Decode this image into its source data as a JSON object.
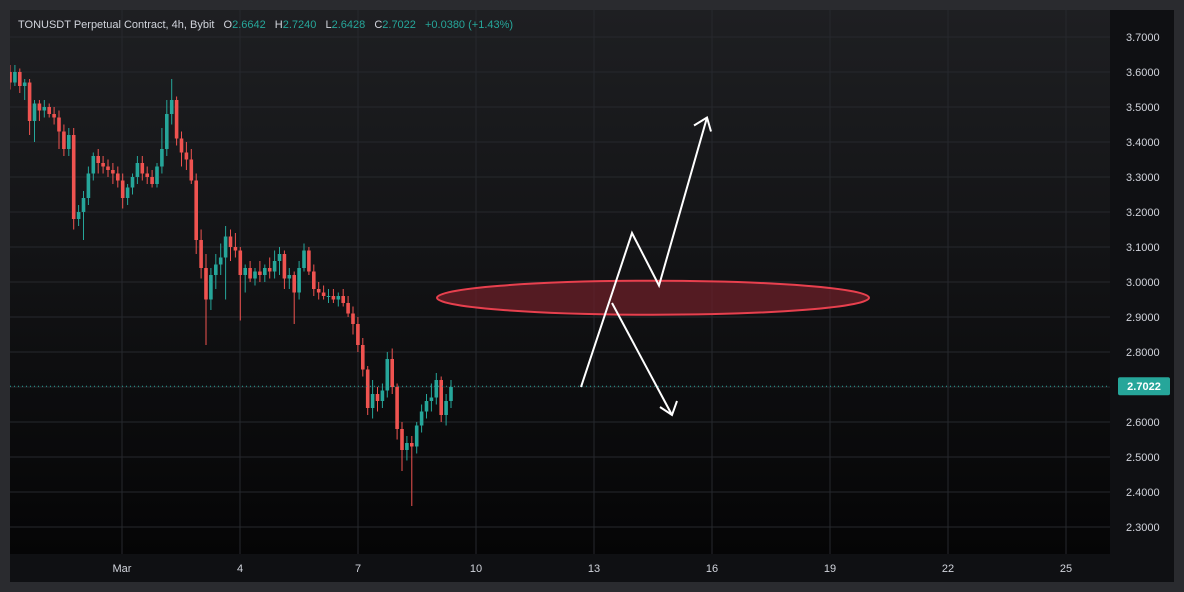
{
  "legend": {
    "symbol": "TONUSDT Perpetual Contract, 4h, Bybit",
    "o_label": "O",
    "o_value": "2.6642",
    "h_label": "H",
    "h_value": "2.7240",
    "l_label": "L",
    "l_value": "2.6428",
    "c_label": "C",
    "c_value": "2.7022",
    "change": "+0.0380 (+1.43%)"
  },
  "colors": {
    "background_top": "#1e1f22",
    "background_bottom": "#050506",
    "grid": "#26282d",
    "up": "#26a69a",
    "down": "#ef5350",
    "price_line": "#26a69a",
    "zone_fill": "#6b1f28",
    "zone_stroke": "#e8404e",
    "arrow": "#ffffff"
  },
  "chart_data": {
    "type": "candlestick",
    "title": "TONUSDT Perpetual Contract, 4h, Bybit",
    "ylim": [
      2.25,
      3.74
    ],
    "y_ticks": [
      "3.7000",
      "3.6000",
      "3.5000",
      "3.4000",
      "3.3000",
      "3.2000",
      "3.1000",
      "3.0000",
      "2.9000",
      "2.8000",
      "2.6000",
      "2.5000",
      "2.4000",
      "2.3000"
    ],
    "x_ticks": [
      "Mar",
      "4",
      "7",
      "10",
      "13",
      "16",
      "19",
      "22",
      "25"
    ],
    "last_price": 2.7022,
    "last_price_label": "2.7022",
    "candles": [
      [
        3.6,
        3.62,
        3.55,
        3.57
      ],
      [
        3.57,
        3.62,
        3.56,
        3.6
      ],
      [
        3.6,
        3.61,
        3.54,
        3.56
      ],
      [
        3.56,
        3.58,
        3.52,
        3.57
      ],
      [
        3.57,
        3.58,
        3.42,
        3.46
      ],
      [
        3.46,
        3.52,
        3.4,
        3.51
      ],
      [
        3.51,
        3.52,
        3.46,
        3.49
      ],
      [
        3.49,
        3.52,
        3.47,
        3.5
      ],
      [
        3.5,
        3.51,
        3.47,
        3.48
      ],
      [
        3.48,
        3.5,
        3.45,
        3.47
      ],
      [
        3.47,
        3.49,
        3.38,
        3.43
      ],
      [
        3.43,
        3.45,
        3.36,
        3.38
      ],
      [
        3.38,
        3.44,
        3.36,
        3.42
      ],
      [
        3.42,
        3.44,
        3.15,
        3.18
      ],
      [
        3.18,
        3.22,
        3.16,
        3.2
      ],
      [
        3.2,
        3.26,
        3.12,
        3.24
      ],
      [
        3.24,
        3.33,
        3.22,
        3.31
      ],
      [
        3.31,
        3.37,
        3.29,
        3.36
      ],
      [
        3.36,
        3.38,
        3.31,
        3.34
      ],
      [
        3.34,
        3.36,
        3.31,
        3.33
      ],
      [
        3.33,
        3.35,
        3.3,
        3.32
      ],
      [
        3.32,
        3.34,
        3.28,
        3.31
      ],
      [
        3.31,
        3.33,
        3.27,
        3.29
      ],
      [
        3.29,
        3.31,
        3.21,
        3.24
      ],
      [
        3.24,
        3.28,
        3.22,
        3.27
      ],
      [
        3.27,
        3.31,
        3.25,
        3.3
      ],
      [
        3.3,
        3.36,
        3.28,
        3.34
      ],
      [
        3.34,
        3.36,
        3.29,
        3.31
      ],
      [
        3.31,
        3.33,
        3.28,
        3.3
      ],
      [
        3.3,
        3.32,
        3.27,
        3.28
      ],
      [
        3.28,
        3.34,
        3.27,
        3.33
      ],
      [
        3.33,
        3.44,
        3.31,
        3.38
      ],
      [
        3.38,
        3.52,
        3.36,
        3.48
      ],
      [
        3.48,
        3.58,
        3.45,
        3.52
      ],
      [
        3.52,
        3.53,
        3.39,
        3.41
      ],
      [
        3.41,
        3.43,
        3.33,
        3.37
      ],
      [
        3.37,
        3.4,
        3.32,
        3.35
      ],
      [
        3.35,
        3.38,
        3.28,
        3.29
      ],
      [
        3.29,
        3.31,
        3.08,
        3.12
      ],
      [
        3.12,
        3.15,
        3.01,
        3.04
      ],
      [
        3.04,
        3.08,
        2.82,
        2.95
      ],
      [
        2.95,
        3.04,
        2.92,
        3.02
      ],
      [
        3.02,
        3.08,
        2.98,
        3.05
      ],
      [
        3.05,
        3.11,
        3.02,
        3.07
      ],
      [
        3.07,
        3.16,
        2.95,
        3.13
      ],
      [
        3.13,
        3.15,
        3.06,
        3.1
      ],
      [
        3.1,
        3.14,
        3.07,
        3.09
      ],
      [
        3.09,
        3.1,
        2.89,
        3.02
      ],
      [
        3.02,
        3.05,
        2.97,
        3.04
      ],
      [
        3.04,
        3.06,
        3.0,
        3.01
      ],
      [
        3.01,
        3.04,
        2.99,
        3.03
      ],
      [
        3.03,
        3.06,
        3.0,
        3.02
      ],
      [
        3.02,
        3.05,
        3.0,
        3.04
      ],
      [
        3.04,
        3.07,
        3.01,
        3.03
      ],
      [
        3.03,
        3.09,
        3.01,
        3.06
      ],
      [
        3.06,
        3.1,
        3.02,
        3.08
      ],
      [
        3.08,
        3.09,
        2.98,
        3.01
      ],
      [
        3.01,
        3.04,
        2.98,
        3.02
      ],
      [
        3.02,
        3.03,
        2.88,
        2.97
      ],
      [
        2.97,
        3.06,
        2.95,
        3.04
      ],
      [
        3.04,
        3.11,
        3.03,
        3.09
      ],
      [
        3.09,
        3.1,
        3.02,
        3.03
      ],
      [
        3.03,
        3.05,
        2.96,
        2.98
      ],
      [
        2.98,
        3.0,
        2.95,
        2.97
      ],
      [
        2.97,
        2.99,
        2.95,
        2.96
      ],
      [
        2.96,
        2.98,
        2.94,
        2.96
      ],
      [
        2.96,
        2.98,
        2.94,
        2.95
      ],
      [
        2.95,
        2.97,
        2.93,
        2.96
      ],
      [
        2.96,
        2.98,
        2.93,
        2.94
      ],
      [
        2.94,
        2.96,
        2.9,
        2.91
      ],
      [
        2.91,
        2.93,
        2.85,
        2.88
      ],
      [
        2.88,
        2.9,
        2.8,
        2.82
      ],
      [
        2.82,
        2.84,
        2.73,
        2.75
      ],
      [
        2.75,
        2.76,
        2.62,
        2.64
      ],
      [
        2.64,
        2.72,
        2.61,
        2.68
      ],
      [
        2.68,
        2.7,
        2.63,
        2.66
      ],
      [
        2.66,
        2.71,
        2.64,
        2.69
      ],
      [
        2.69,
        2.8,
        2.67,
        2.78
      ],
      [
        2.78,
        2.81,
        2.68,
        2.7
      ],
      [
        2.7,
        2.71,
        2.55,
        2.58
      ],
      [
        2.58,
        2.6,
        2.46,
        2.52
      ],
      [
        2.52,
        2.56,
        2.49,
        2.54
      ],
      [
        2.54,
        2.56,
        2.36,
        2.53
      ],
      [
        2.53,
        2.6,
        2.51,
        2.59
      ],
      [
        2.59,
        2.65,
        2.57,
        2.63
      ],
      [
        2.63,
        2.68,
        2.61,
        2.66
      ],
      [
        2.66,
        2.71,
        2.63,
        2.67
      ],
      [
        2.67,
        2.74,
        2.65,
        2.72
      ],
      [
        2.72,
        2.73,
        2.6,
        2.62
      ],
      [
        2.62,
        2.68,
        2.59,
        2.66
      ],
      [
        2.66,
        2.72,
        2.64,
        2.7
      ]
    ],
    "annotations": {
      "zone_center_price": 2.955,
      "arrow_up_path": [
        [
          2.7
        ],
        [
          3.14
        ],
        [
          2.99
        ],
        [
          3.47
        ]
      ],
      "arrow_down_path": [
        [
          2.94
        ],
        [
          2.62
        ]
      ]
    }
  }
}
